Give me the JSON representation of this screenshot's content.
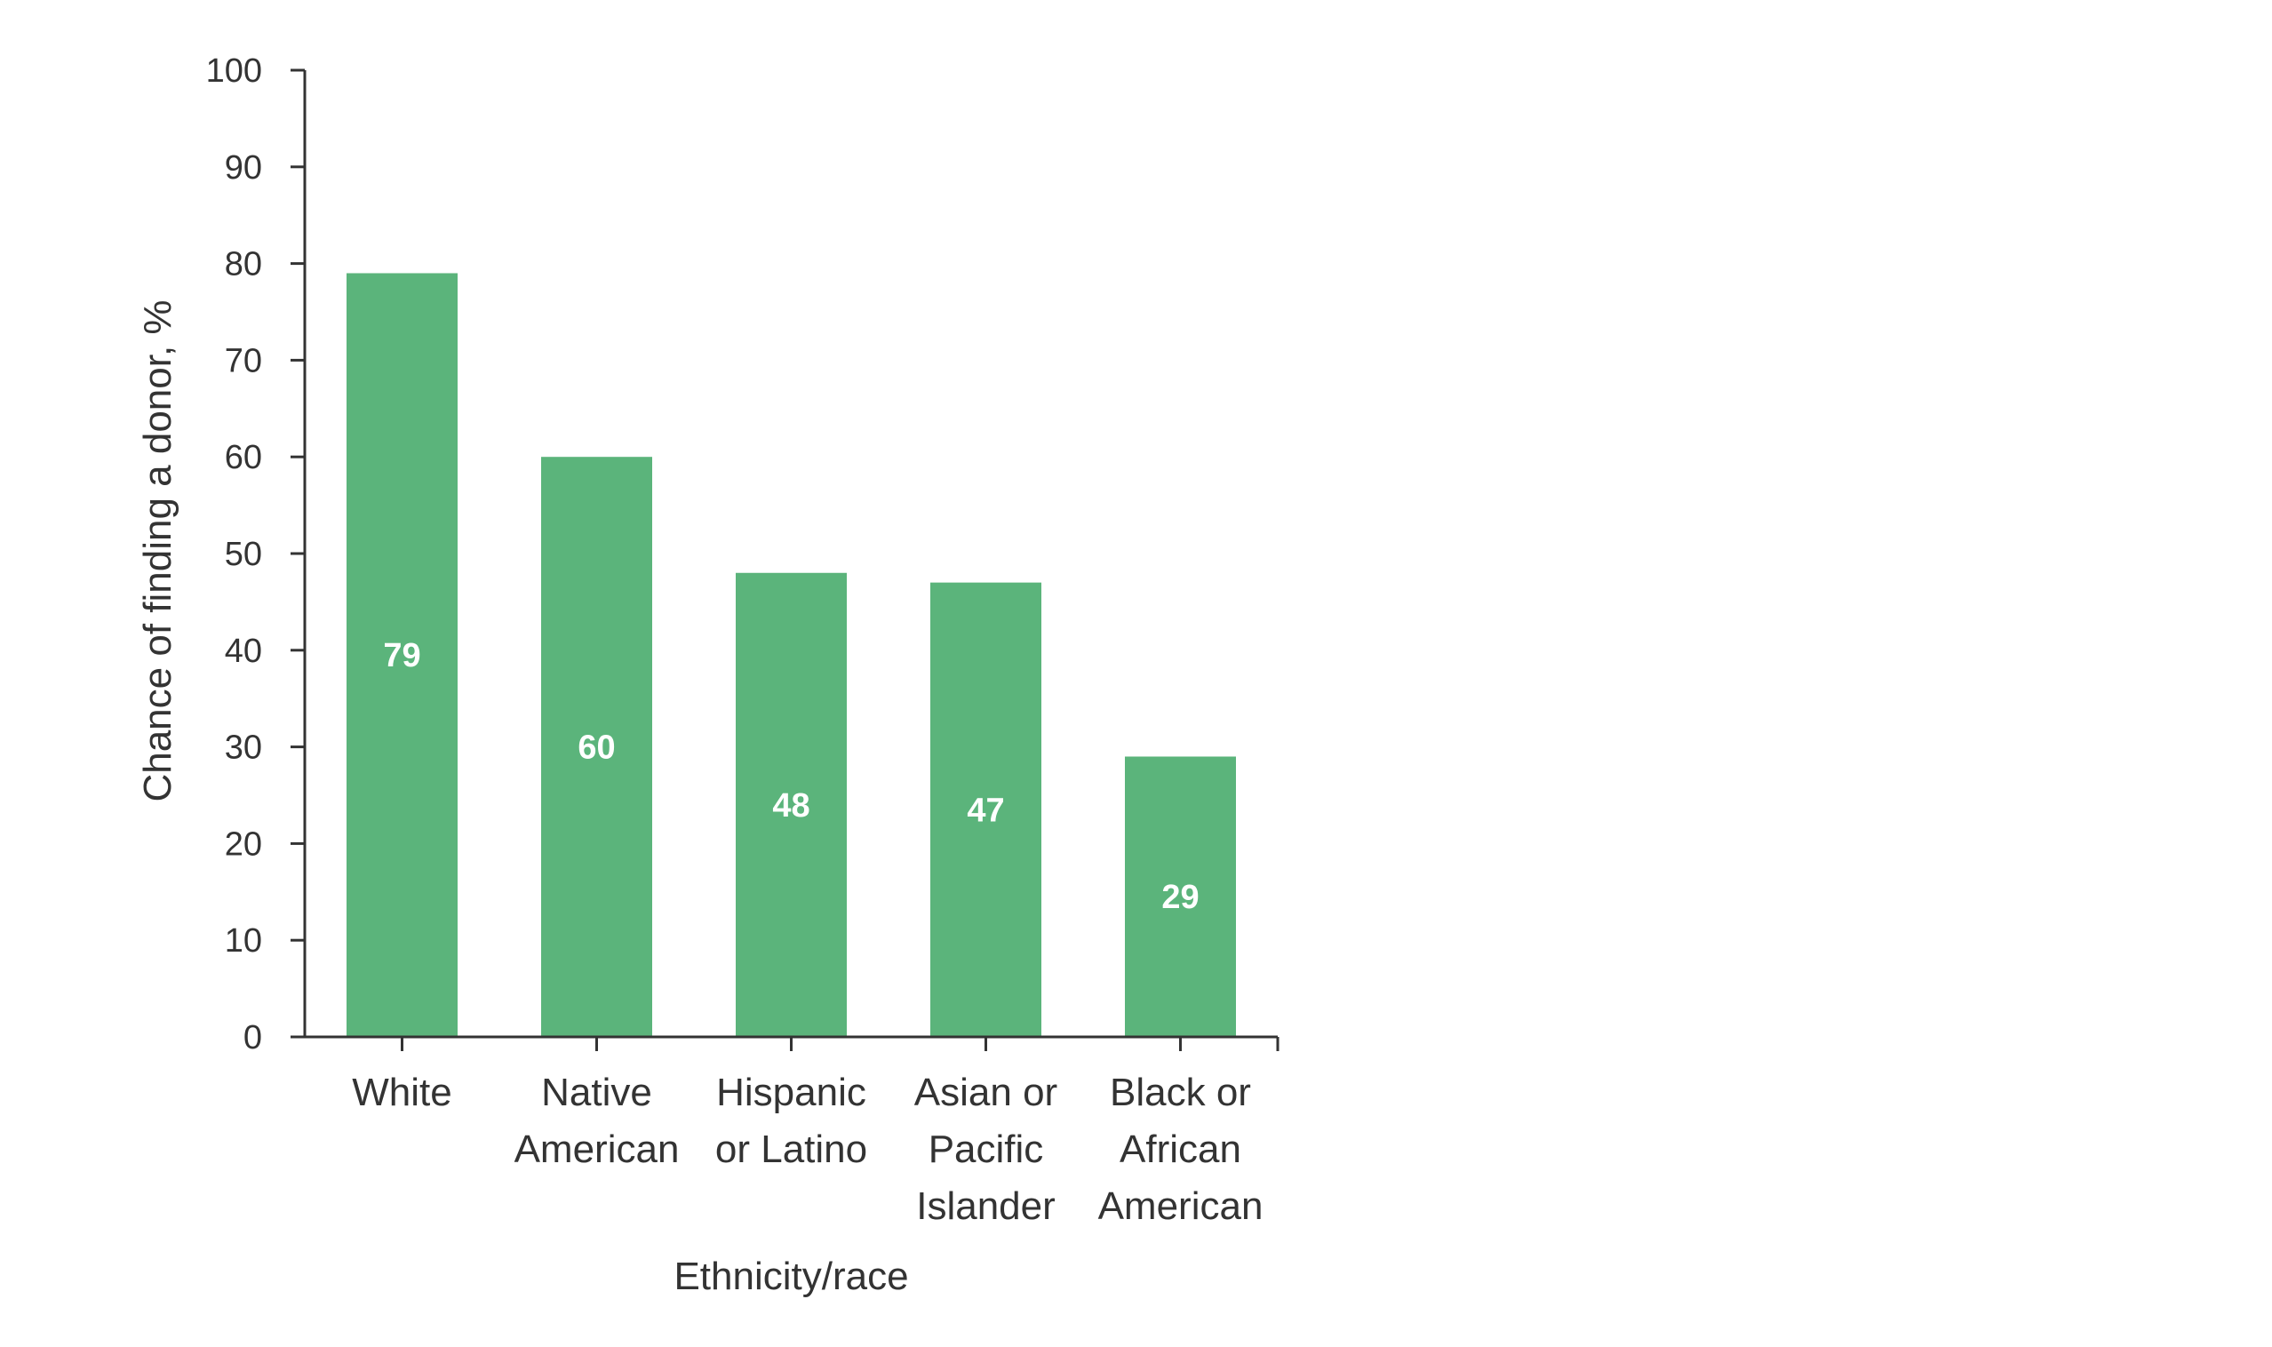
{
  "chart_data": {
    "type": "bar",
    "categories": [
      [
        "White"
      ],
      [
        "Native",
        "American"
      ],
      [
        "Hispanic",
        "or Latino"
      ],
      [
        "Asian or",
        "Pacific",
        "Islander"
      ],
      [
        "Black or",
        "African",
        "American"
      ]
    ],
    "values": [
      79,
      60,
      48,
      47,
      29
    ],
    "data_labels": [
      "79",
      "60",
      "48",
      "47",
      "29"
    ],
    "title": "",
    "xlabel": "Ethnicity/race",
    "ylabel": "Chance of finding a donor, %",
    "ylim": [
      0,
      100
    ],
    "yticks": [
      0,
      10,
      20,
      30,
      40,
      50,
      60,
      70,
      80,
      90,
      100
    ],
    "ytick_labels": [
      "0",
      "10",
      "20",
      "30",
      "40",
      "50",
      "60",
      "70",
      "80",
      "90",
      "100"
    ],
    "grid": false,
    "legend": "none",
    "bar_color": "#5bb47b",
    "axis_color": "#333333"
  }
}
